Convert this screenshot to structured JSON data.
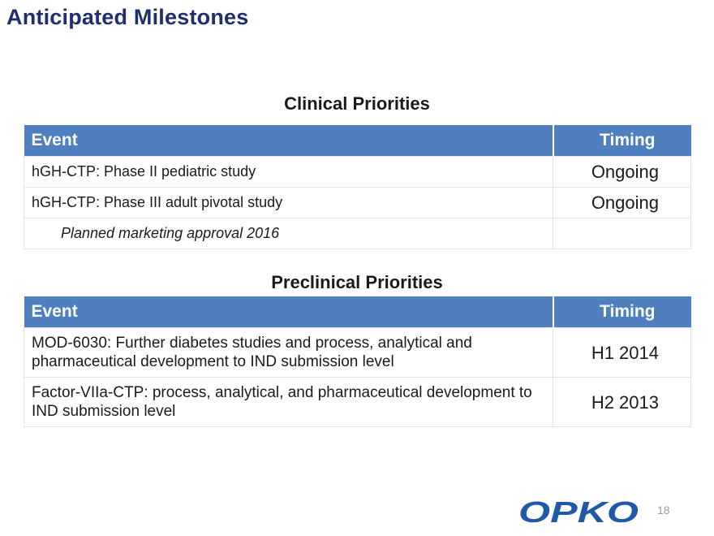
{
  "title": "Anticipated Milestones",
  "clinical": {
    "heading": "Clinical Priorities",
    "columns": {
      "event": "Event",
      "timing": "Timing"
    },
    "rows": [
      {
        "event": "hGH-CTP: Phase II pediatric study",
        "timing": "Ongoing"
      },
      {
        "event": "hGH-CTP: Phase III adult pivotal study",
        "timing": "Ongoing"
      },
      {
        "event": "Planned marketing approval 2016",
        "timing": ""
      }
    ]
  },
  "preclinical": {
    "heading": "Preclinical Priorities",
    "columns": {
      "event": "Event",
      "timing": "Timing"
    },
    "rows": [
      {
        "event": "MOD-6030:  Further diabetes studies and process, analytical and pharmaceutical development to IND submission level",
        "timing": "H1 2014"
      },
      {
        "event": "Factor-VIIa-CTP: process, analytical, and pharmaceutical development to IND submission level",
        "timing": "H2 2013"
      }
    ]
  },
  "footer": {
    "logo_text": "OPKO",
    "logo_color": "#1e5aa8",
    "page_number": "18"
  },
  "colors": {
    "title": "#1f2f6b",
    "header_fill": "#4f7fbe"
  }
}
